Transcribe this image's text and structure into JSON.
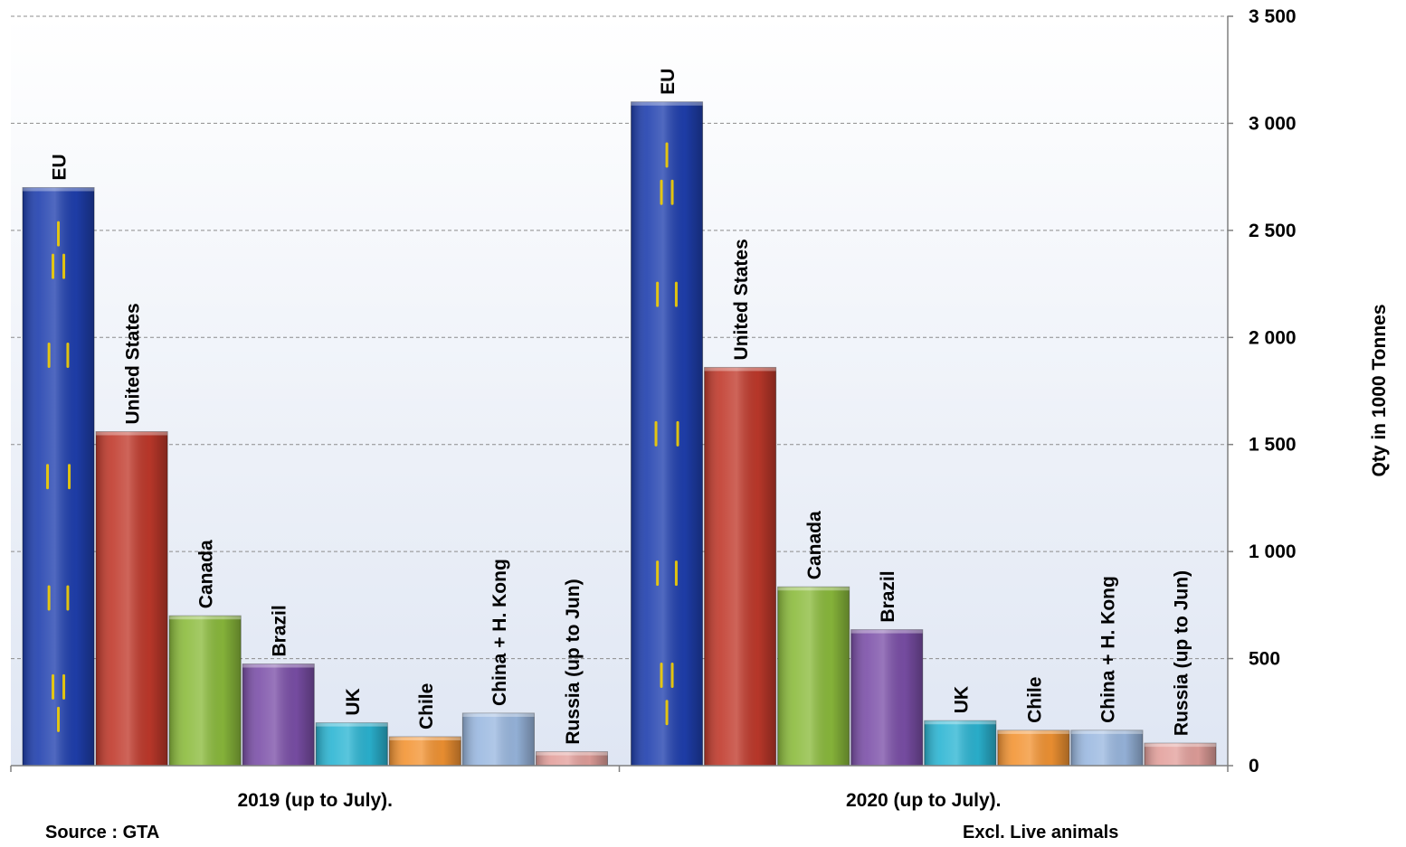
{
  "chart_data": {
    "type": "bar",
    "title": "",
    "xlabel": "",
    "ylabel": "Qty in 1000 Tonnes",
    "ylim": [
      0,
      3500
    ],
    "yticks": [
      0,
      500,
      1000,
      1500,
      2000,
      2500,
      3000,
      3500
    ],
    "ytick_labels": [
      "0",
      "500",
      "1 000",
      "1 500",
      "2 000",
      "2 500",
      "3 000",
      "3 500"
    ],
    "y_axis_side": "right",
    "grid": true,
    "legend": "none",
    "categories": [
      "2019 (up to July).",
      "2020 (up to July)."
    ],
    "series": [
      {
        "name": "EU",
        "color": "#1f3fae",
        "values": [
          2700,
          3100
        ]
      },
      {
        "name": "United States",
        "color": "#c0392b",
        "values": [
          1560,
          1860
        ]
      },
      {
        "name": "Canada",
        "color": "#8bbb3c",
        "values": [
          700,
          835
        ]
      },
      {
        "name": "Brazil",
        "color": "#7b4fa8",
        "values": [
          475,
          635
        ]
      },
      {
        "name": "UK",
        "color": "#2bb5d3",
        "values": [
          200,
          210
        ]
      },
      {
        "name": "Chile",
        "color": "#f39433",
        "values": [
          135,
          165
        ]
      },
      {
        "name": "China + H. Kong",
        "color": "#9ab8e0",
        "values": [
          245,
          165
        ]
      },
      {
        "name": "Russia (up to Jun)",
        "color": "#e3a09c",
        "values": [
          65,
          105
        ]
      }
    ]
  },
  "notes": {
    "source": "Source : GTA",
    "excl": "Excl. Live animals"
  }
}
